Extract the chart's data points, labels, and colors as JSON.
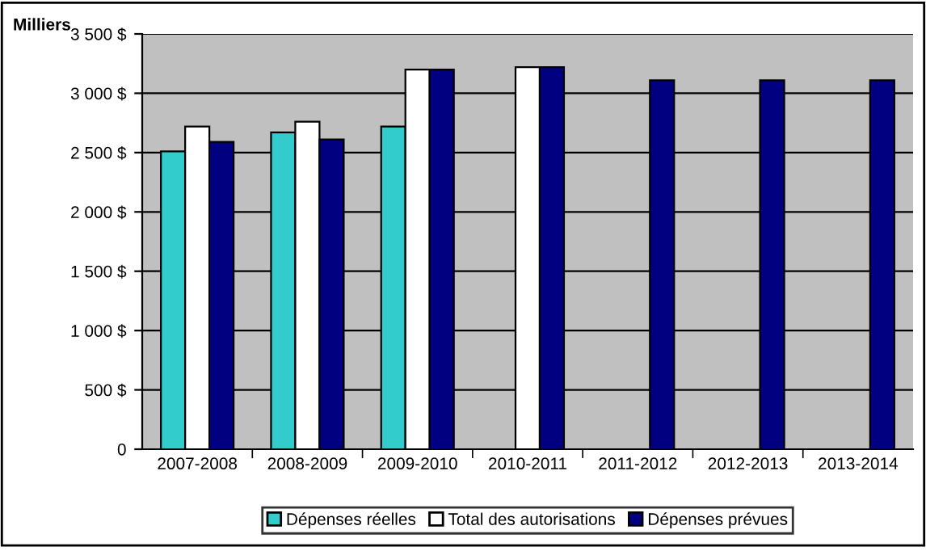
{
  "chart_data": {
    "type": "bar",
    "ylabel": "Milliers",
    "categories": [
      "2007-2008",
      "2008-2009",
      "2009-2010",
      "2010-2011",
      "2011-2012",
      "2012-2013",
      "2013-2014"
    ],
    "series": [
      {
        "name": "Dépenses réelles",
        "color": "#33cccc",
        "values": [
          2510,
          2670,
          2720,
          null,
          null,
          null,
          null
        ]
      },
      {
        "name": "Total des autorisations",
        "color": "#ffffff",
        "values": [
          2720,
          2760,
          3200,
          3220,
          null,
          null,
          null
        ]
      },
      {
        "name": "Dépenses prévues",
        "color": "#000080",
        "values": [
          2590,
          2610,
          3200,
          3220,
          3110,
          3110,
          3110
        ]
      }
    ],
    "ylim": [
      0,
      3500
    ],
    "yticks": [
      0,
      {
        "value": 500,
        "label": "500 $"
      },
      {
        "value": 1000,
        "label": "1 000 $"
      },
      {
        "value": 1500,
        "label": "1 500 $"
      },
      {
        "value": 2000,
        "label": "2 000 $"
      },
      {
        "value": 2500,
        "label": "2 500 $"
      },
      {
        "value": 3000,
        "label": "3 000 $"
      },
      {
        "value": 3500,
        "label": "3 500 $"
      }
    ],
    "grid": "y",
    "legend": "bottom"
  }
}
